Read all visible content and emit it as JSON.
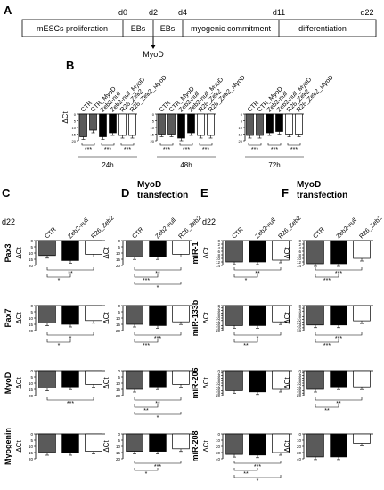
{
  "panelA": {
    "letter": "A",
    "days": [
      "d0",
      "d2",
      "d4",
      "d11",
      "d22"
    ],
    "stages": [
      "mESCs proliferation",
      "EBs",
      "EBs",
      "myogenic commitment",
      "differentiation"
    ],
    "arrow_label": "MyoD"
  },
  "panelB": {
    "letter": "B",
    "axis_label": "ΔCt",
    "groups": [
      {
        "time": "24h",
        "labels": [
          "CTR",
          "CTR_MyoD",
          "Zeb2-null",
          "Zeb2-null_MyoD",
          "R26_Zeb2",
          "R26_Zeb2_MyoD"
        ],
        "colors": [
          "#5a5a5a",
          "#5a5a5a",
          "#000000",
          "#000000",
          "#ffffff",
          "#ffffff"
        ],
        "values": [
          17,
          12,
          17,
          14,
          16,
          16
        ],
        "ticks": [
          "0",
          "5",
          "10",
          "15",
          "20"
        ],
        "sig": [
          "***",
          "***",
          "***"
        ]
      },
      {
        "time": "48h",
        "labels": [
          "CTR",
          "CTR_MyoD",
          "Zeb2-null",
          "Zeb2-null_MyoD",
          "R26_Zeb2",
          "R26_Zeb2_MyoD"
        ],
        "colors": [
          "#5a5a5a",
          "#5a5a5a",
          "#000000",
          "#000000",
          "#ffffff",
          "#ffffff"
        ],
        "values": [
          15,
          15,
          18,
          14,
          16,
          16
        ],
        "ticks": [
          "0",
          "5",
          "10",
          "15",
          "20"
        ],
        "sig": [
          "***",
          "***",
          "***"
        ]
      },
      {
        "time": "72h",
        "labels": [
          "CTR",
          "CTR_MyoD",
          "Zeb2-null",
          "Zeb2-null_MyoD",
          "R26_Zeb2",
          "R26_Zeb2_MyoD"
        ],
        "colors": [
          "#5a5a5a",
          "#5a5a5a",
          "#000000",
          "#000000",
          "#ffffff",
          "#ffffff"
        ],
        "values": [
          16,
          16,
          14,
          13,
          15,
          15
        ],
        "ticks": [
          "0",
          "5",
          "10",
          "15",
          "20"
        ],
        "sig": [
          "***",
          "***",
          "***"
        ]
      }
    ]
  },
  "common": {
    "d22": "d22",
    "ylabel": "ΔCt",
    "bar_labels": [
      "CTR",
      "Zeb2-null",
      "R26_Zeb2"
    ],
    "colors": [
      "#5a5a5a",
      "#000000",
      "#ffffff"
    ]
  },
  "panelC": {
    "letter": "C",
    "title": "",
    "rows": [
      {
        "gene": "Pax3",
        "values": [
          12,
          16,
          11
        ],
        "ticks": [
          "0",
          "5",
          "10",
          "15",
          "20"
        ],
        "ymax": 20,
        "sig": [
          "**",
          "*"
        ]
      },
      {
        "gene": "Pax7",
        "values": [
          14,
          15,
          12
        ],
        "ticks": [
          "0",
          "5",
          "10",
          "15",
          "20"
        ],
        "ymax": 20,
        "sig": [
          "*",
          "*"
        ]
      },
      {
        "gene": "MyoD",
        "values": [
          14,
          13,
          11
        ],
        "ticks": [
          "0",
          "5",
          "10",
          "15",
          "20"
        ],
        "ymax": 20,
        "sig": [
          "***"
        ]
      },
      {
        "gene": "Myogenin",
        "values": [
          15,
          15,
          14
        ],
        "ticks": [
          "0",
          "5",
          "10",
          "15",
          "20"
        ],
        "ymax": 20,
        "sig": []
      }
    ]
  },
  "panelD": {
    "letter": "D",
    "title": [
      "MyoD",
      "transfection"
    ],
    "rows": [
      {
        "values": [
          13,
          13,
          11
        ],
        "ticks": [
          "0",
          "5",
          "10",
          "15",
          "20"
        ],
        "ymax": 20,
        "sig": [
          "**",
          "***",
          "*"
        ]
      },
      {
        "values": [
          15,
          16,
          13
        ],
        "ticks": [
          "0",
          "5",
          "10",
          "15",
          "20"
        ],
        "ymax": 20,
        "sig": [
          "***",
          "***"
        ]
      },
      {
        "values": [
          15,
          13,
          11
        ],
        "ticks": [
          "0",
          "5",
          "10",
          "15",
          "20"
        ],
        "ymax": 20,
        "sig": [
          "**",
          "**",
          "*"
        ]
      },
      {
        "values": [
          14,
          14,
          12
        ],
        "ticks": [
          "0",
          "5",
          "10",
          "15",
          "20"
        ],
        "ymax": 20,
        "sig": [
          "***",
          "*"
        ]
      }
    ]
  },
  "panelE": {
    "letter": "E",
    "title": "",
    "rows": [
      {
        "gene": "miR-1",
        "values": [
          12,
          12,
          11
        ],
        "ticks": [
          "0",
          "2",
          "4",
          "6",
          "8",
          "10",
          "12",
          "14"
        ],
        "ymax": 14,
        "sig": [
          "**",
          "*"
        ]
      },
      {
        "gene": "miR-133b",
        "values": [
          16,
          16,
          13
        ],
        "ticks": [
          "0",
          "2",
          "4",
          "6",
          "8",
          "10",
          "12",
          "14",
          "16",
          "18",
          "20"
        ],
        "ymax": 20,
        "sig": [
          "*",
          "**"
        ]
      },
      {
        "gene": "miR-206",
        "values": [
          16,
          17,
          15
        ],
        "ticks": [
          "0",
          "2",
          "4",
          "6",
          "8",
          "10",
          "12",
          "14",
          "16",
          "18",
          "20"
        ],
        "ymax": 20,
        "sig": []
      },
      {
        "gene": "miR-208",
        "values": [
          33,
          34,
          30
        ],
        "ticks": [
          "0",
          "10",
          "20",
          "30",
          "40"
        ],
        "ymax": 40,
        "sig": [
          "***",
          "**",
          "*"
        ]
      }
    ]
  },
  "panelF": {
    "letter": "F",
    "title": [
      "MyoD",
      "transfection"
    ],
    "rows": [
      {
        "values": [
          13,
          13,
          10
        ],
        "ticks": [
          "0",
          "2",
          "4",
          "6",
          "8",
          "10",
          "12",
          "14"
        ],
        "ymax": 14,
        "sig": [
          "***",
          "***"
        ]
      },
      {
        "values": [
          14,
          14,
          11
        ],
        "ticks": [
          "0",
          "2",
          "4",
          "6",
          "8",
          "10",
          "12",
          "14",
          "16",
          "18"
        ],
        "ymax": 18,
        "sig": [
          "***",
          "***"
        ]
      },
      {
        "values": [
          15,
          13,
          13
        ],
        "ticks": [
          "0",
          "2",
          "4",
          "6",
          "8",
          "10",
          "12",
          "14",
          "16",
          "18",
          "20"
        ],
        "ymax": 20,
        "sig": [
          "**",
          "**"
        ]
      },
      {
        "values": [
          37,
          37,
          15
        ],
        "ticks": [
          "0",
          "10",
          "20",
          "30",
          "40"
        ],
        "ymax": 40,
        "sig": []
      }
    ]
  }
}
